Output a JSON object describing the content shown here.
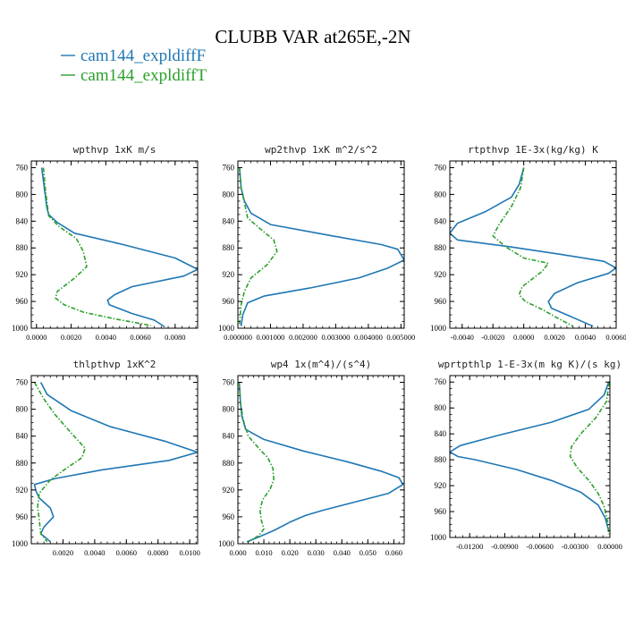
{
  "figure": {
    "title": "CLUBB VAR at265E,-2N",
    "legend": [
      {
        "label": "cam144_expldiffF",
        "color": "#1f77b4",
        "dash": "solid"
      },
      {
        "label": "cam144_expldiffT",
        "color": "#2ca02c",
        "dash": "dashdot"
      }
    ]
  },
  "chart_data": [
    {
      "type": "line",
      "title": "wpthvp  1xK m/s",
      "ylim": [
        1000,
        750
      ],
      "yticks": [
        760,
        800,
        840,
        880,
        920,
        960,
        1000
      ],
      "xlim": [
        -0.0003,
        0.0093
      ],
      "xticks": [
        0.0,
        0.002,
        0.004,
        0.006,
        0.008
      ],
      "xticklabels": [
        "0.0000",
        "0.0020",
        "0.0040",
        "0.0060",
        "0.0080"
      ],
      "series": [
        {
          "name": "cam144_expldiffF",
          "color": "#1f77b4",
          "dash": "solid",
          "points": [
            [
              0.0003,
              760
            ],
            [
              0.0004,
              780
            ],
            [
              0.0005,
              800
            ],
            [
              0.0006,
              820
            ],
            [
              0.0007,
              830
            ],
            [
              0.0012,
              842
            ],
            [
              0.0022,
              858
            ],
            [
              0.005,
              875
            ],
            [
              0.008,
              895
            ],
            [
              0.0093,
              912
            ],
            [
              0.0085,
              922
            ],
            [
              0.0055,
              938
            ],
            [
              0.0045,
              950
            ],
            [
              0.0041,
              958
            ],
            [
              0.0042,
              965
            ],
            [
              0.0055,
              978
            ],
            [
              0.0068,
              988
            ],
            [
              0.0074,
              998
            ]
          ]
        },
        {
          "name": "cam144_expldiffT",
          "color": "#2ca02c",
          "dash": "dashdot",
          "points": [
            [
              0.0004,
              760
            ],
            [
              0.0005,
              790
            ],
            [
              0.0006,
              810
            ],
            [
              0.0007,
              832
            ],
            [
              0.0013,
              848
            ],
            [
              0.0023,
              866
            ],
            [
              0.0027,
              885
            ],
            [
              0.0029,
              908
            ],
            [
              0.0022,
              925
            ],
            [
              0.0012,
              945
            ],
            [
              0.0011,
              955
            ],
            [
              0.0016,
              965
            ],
            [
              0.0027,
              976
            ],
            [
              0.0045,
              986
            ],
            [
              0.0066,
              996
            ]
          ]
        }
      ]
    },
    {
      "type": "line",
      "title": "wp2thvp  1xK m^2/s^2",
      "ylim": [
        1000,
        750
      ],
      "yticks": [
        760,
        800,
        840,
        880,
        920,
        960,
        1000
      ],
      "xlim": [
        0.0,
        0.0051
      ],
      "xticks": [
        0.0,
        0.001,
        0.002,
        0.003,
        0.004,
        0.005
      ],
      "xticklabels": [
        "0.000000",
        "0.001000",
        "0.002000",
        "0.003000",
        "0.004000",
        "0.005000"
      ],
      "series": [
        {
          "name": "cam144_expldiffF",
          "color": "#1f77b4",
          "dash": "solid",
          "points": [
            [
              5e-05,
              760
            ],
            [
              0.0001,
              790
            ],
            [
              0.0002,
              810
            ],
            [
              0.0004,
              828
            ],
            [
              0.001,
              845
            ],
            [
              0.0029,
              862
            ],
            [
              0.0044,
              875
            ],
            [
              0.0049,
              882
            ],
            [
              0.0051,
              898
            ],
            [
              0.0046,
              910
            ],
            [
              0.0037,
              925
            ],
            [
              0.0022,
              940
            ],
            [
              0.0008,
              952
            ],
            [
              0.0003,
              962
            ],
            [
              0.00015,
              980
            ],
            [
              0.0001,
              997
            ]
          ]
        },
        {
          "name": "cam144_expldiffT",
          "color": "#2ca02c",
          "dash": "dashdot",
          "points": [
            [
              5e-05,
              760
            ],
            [
              0.0001,
              790
            ],
            [
              0.0002,
              812
            ],
            [
              0.0003,
              835
            ],
            [
              0.0007,
              852
            ],
            [
              0.0011,
              868
            ],
            [
              0.0012,
              885
            ],
            [
              0.0009,
              905
            ],
            [
              0.0004,
              925
            ],
            [
              0.0002,
              945
            ],
            [
              0.0001,
              965
            ],
            [
              5e-05,
              997
            ]
          ]
        }
      ]
    },
    {
      "type": "line",
      "title": "rtpthvp  1E-3x(kg/kg) K",
      "ylim": [
        1000,
        750
      ],
      "yticks": [
        760,
        800,
        840,
        880,
        920,
        960,
        1000
      ],
      "xlim": [
        -0.0048,
        0.006
      ],
      "xticks": [
        -0.004,
        -0.002,
        0.0,
        0.002,
        0.004,
        0.006
      ],
      "xticklabels": [
        "-0.0040",
        "-0.0020",
        "0.0000",
        "0.0020",
        "0.0040",
        "0.0060"
      ],
      "series": [
        {
          "name": "cam144_expldiffF",
          "color": "#1f77b4",
          "dash": "solid",
          "points": [
            [
              0.0,
              760
            ],
            [
              -0.0003,
              785
            ],
            [
              -0.0008,
              804
            ],
            [
              -0.0025,
              826
            ],
            [
              -0.0043,
              843
            ],
            [
              -0.0048,
              858
            ],
            [
              -0.0043,
              868
            ],
            [
              -0.001,
              878
            ],
            [
              0.0025,
              890
            ],
            [
              0.0052,
              900
            ],
            [
              0.006,
              910
            ],
            [
              0.0055,
              918
            ],
            [
              0.0035,
              932
            ],
            [
              0.002,
              948
            ],
            [
              0.0016,
              960
            ],
            [
              0.0018,
              970
            ],
            [
              0.0033,
              985
            ],
            [
              0.0045,
              997
            ]
          ]
        },
        {
          "name": "cam144_expldiffT",
          "color": "#2ca02c",
          "dash": "dashdot",
          "points": [
            [
              0.0,
              760
            ],
            [
              -0.0002,
              790
            ],
            [
              -0.0008,
              818
            ],
            [
              -0.0016,
              845
            ],
            [
              -0.002,
              862
            ],
            [
              -0.0012,
              878
            ],
            [
              0.0,
              895
            ],
            [
              0.0016,
              903
            ],
            [
              0.0012,
              915
            ],
            [
              -0.0001,
              938
            ],
            [
              -0.0003,
              950
            ],
            [
              0.0001,
              960
            ],
            [
              0.0012,
              972
            ],
            [
              0.0022,
              985
            ],
            [
              0.0032,
              997
            ]
          ]
        }
      ]
    },
    {
      "type": "line",
      "title": "thlpthvp  1xK^2",
      "ylim": [
        1000,
        750
      ],
      "yticks": [
        760,
        800,
        840,
        880,
        920,
        960,
        1000
      ],
      "xlim": [
        0.0,
        0.0105
      ],
      "xticks": [
        0.002,
        0.004,
        0.006,
        0.008,
        0.01
      ],
      "xticklabels": [
        "0.0020",
        "0.0040",
        "0.0060",
        "0.0080",
        "0.0100"
      ],
      "series": [
        {
          "name": "cam144_expldiffF",
          "color": "#1f77b4",
          "dash": "solid",
          "points": [
            [
              0.0006,
              760
            ],
            [
              0.001,
              778
            ],
            [
              0.0025,
              802
            ],
            [
              0.005,
              826
            ],
            [
              0.0085,
              848
            ],
            [
              0.0105,
              864
            ],
            [
              0.0087,
              876
            ],
            [
              0.0045,
              890
            ],
            [
              0.0015,
              903
            ],
            [
              0.0002,
              912
            ],
            [
              0.0003,
              922
            ],
            [
              0.0005,
              932
            ],
            [
              0.0012,
              947
            ],
            [
              0.0014,
              960
            ],
            [
              0.0008,
              975
            ],
            [
              0.0006,
              985
            ],
            [
              0.0012,
              997
            ]
          ]
        },
        {
          "name": "cam144_expldiffT",
          "color": "#2ca02c",
          "dash": "dashdot",
          "points": [
            [
              0.0002,
              760
            ],
            [
              0.0008,
              785
            ],
            [
              0.0015,
              808
            ],
            [
              0.0025,
              835
            ],
            [
              0.0034,
              858
            ],
            [
              0.0032,
              872
            ],
            [
              0.0022,
              888
            ],
            [
              0.0012,
              905
            ],
            [
              0.0005,
              925
            ],
            [
              0.0004,
              945
            ],
            [
              0.0005,
              965
            ],
            [
              0.0006,
              985
            ],
            [
              0.001,
              997
            ]
          ]
        }
      ]
    },
    {
      "type": "line",
      "title": "wp4  1x(m^4)/(s^4)",
      "ylim": [
        1000,
        750
      ],
      "yticks": [
        760,
        800,
        840,
        880,
        920,
        960,
        1000
      ],
      "xlim": [
        0.0,
        0.064
      ],
      "xticks": [
        0.0,
        0.01,
        0.02,
        0.03,
        0.04,
        0.05,
        0.06
      ],
      "xticklabels": [
        "0.000",
        "0.010",
        "0.020",
        "0.030",
        "0.040",
        "0.050",
        "0.060"
      ],
      "series": [
        {
          "name": "cam144_expldiffF",
          "color": "#1f77b4",
          "dash": "solid",
          "points": [
            [
              0.0005,
              760
            ],
            [
              0.001,
              790
            ],
            [
              0.0015,
              810
            ],
            [
              0.003,
              830
            ],
            [
              0.01,
              845
            ],
            [
              0.025,
              862
            ],
            [
              0.042,
              878
            ],
            [
              0.055,
              892
            ],
            [
              0.062,
              902
            ],
            [
              0.0635,
              912
            ],
            [
              0.058,
              925
            ],
            [
              0.045,
              938
            ],
            [
              0.033,
              950
            ],
            [
              0.026,
              958
            ],
            [
              0.02,
              968
            ],
            [
              0.014,
              980
            ],
            [
              0.008,
              990
            ],
            [
              0.0035,
              997
            ]
          ]
        },
        {
          "name": "cam144_expldiffT",
          "color": "#2ca02c",
          "dash": "dashdot",
          "points": [
            [
              0.0005,
              760
            ],
            [
              0.001,
              790
            ],
            [
              0.002,
              815
            ],
            [
              0.004,
              840
            ],
            [
              0.008,
              858
            ],
            [
              0.0115,
              872
            ],
            [
              0.0135,
              888
            ],
            [
              0.0138,
              905
            ],
            [
              0.0125,
              918
            ],
            [
              0.0095,
              935
            ],
            [
              0.0085,
              950
            ],
            [
              0.009,
              965
            ],
            [
              0.01,
              978
            ],
            [
              0.008,
              988
            ],
            [
              0.004,
              997
            ]
          ]
        }
      ]
    },
    {
      "type": "line",
      "title": "wprtpthlp  1-E-3x(m kg K)/(s kg)",
      "ylim": [
        1000,
        750
      ],
      "yticks": [
        760,
        800,
        840,
        880,
        920,
        960,
        1000
      ],
      "xlim": [
        -0.0137,
        0.0
      ],
      "xticks": [
        -0.012,
        -0.009,
        -0.006,
        -0.003,
        0.0
      ],
      "xticklabels": [
        "-0.01200",
        "-0.00900",
        "-0.00600",
        "-0.00300",
        "0.00000"
      ],
      "series": [
        {
          "name": "cam144_expldiffF",
          "color": "#1f77b4",
          "dash": "solid",
          "points": [
            [
              -0.0001,
              760
            ],
            [
              -0.0005,
              780
            ],
            [
              -0.0018,
              802
            ],
            [
              -0.005,
              822
            ],
            [
              -0.0095,
              842
            ],
            [
              -0.0128,
              858
            ],
            [
              -0.0137,
              868
            ],
            [
              -0.013,
              875
            ],
            [
              -0.0115,
              880
            ],
            [
              -0.008,
              895
            ],
            [
              -0.005,
              912
            ],
            [
              -0.0025,
              930
            ],
            [
              -0.001,
              950
            ],
            [
              -0.0004,
              970
            ],
            [
              -0.0001,
              990
            ]
          ]
        },
        {
          "name": "cam144_expldiffT",
          "color": "#2ca02c",
          "dash": "dashdot",
          "points": [
            [
              -5e-05,
              760
            ],
            [
              -0.0003,
              790
            ],
            [
              -0.0012,
              815
            ],
            [
              -0.0025,
              840
            ],
            [
              -0.0033,
              860
            ],
            [
              -0.0034,
              875
            ],
            [
              -0.0028,
              892
            ],
            [
              -0.0018,
              912
            ],
            [
              -0.001,
              932
            ],
            [
              -0.0005,
              952
            ],
            [
              -0.0002,
              975
            ],
            [
              -0.0001,
              995
            ]
          ]
        }
      ]
    }
  ]
}
